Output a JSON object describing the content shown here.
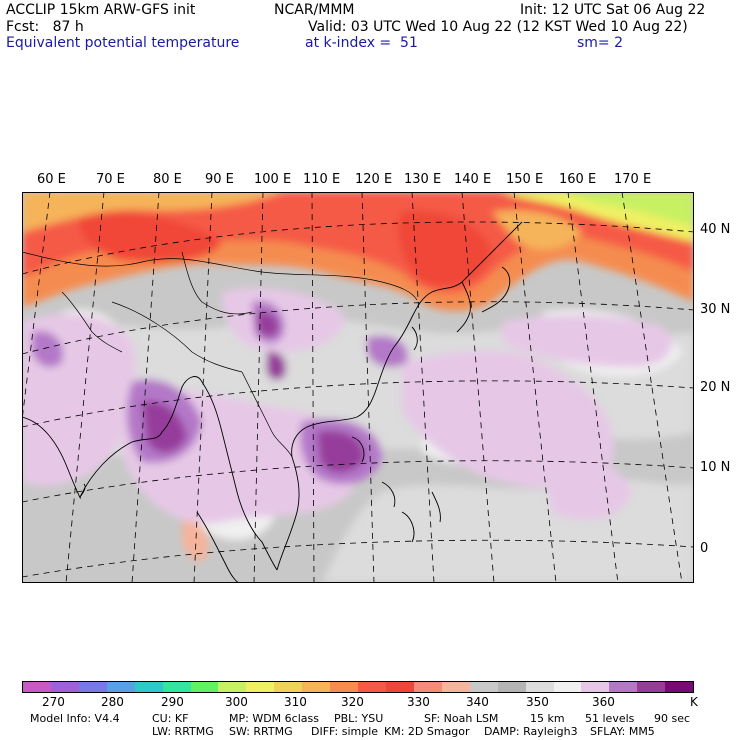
{
  "header": {
    "line1_left": "ACCLIP 15km ARW-GFS init",
    "line1_center": "NCAR/MMM",
    "line1_right": "Init: 12 UTC Sat 06 Aug 22",
    "line2_left": "Fcst:   87 h",
    "line2_right": "Valid: 03 UTC Wed 10 Aug 22 (12 KST Wed 10 Aug 22)",
    "line3_left": "Equivalent potential temperature",
    "line3_center": "at k-index =  51",
    "line3_right": "sm= 2"
  },
  "map": {
    "lon_labels": [
      "60 E",
      "70 E",
      "80 E",
      "90 E",
      "100 E",
      "110 E",
      "120 E",
      "130 E",
      "140 E",
      "150 E",
      "160 E",
      "170 E"
    ],
    "lat_labels": [
      "40 N",
      "30 N",
      "20 N",
      "10 N",
      "0"
    ]
  },
  "colorbar": {
    "colors": [
      "#c85ac8",
      "#a060d8",
      "#7878e6",
      "#5aa0e6",
      "#2ec8c8",
      "#32e6a0",
      "#64f064",
      "#c8f064",
      "#f0f064",
      "#f0d25a",
      "#f5b45a",
      "#f58c50",
      "#f55a46",
      "#f04637",
      "#f58c78",
      "#f5b49b",
      "#c8c8c8",
      "#b4b4b4",
      "#dcdcdc",
      "#f0f0f0",
      "#e6c8e6",
      "#b478c8",
      "#963c9b",
      "#780a78"
    ],
    "labels": [
      "270",
      "280",
      "290",
      "300",
      "310",
      "320",
      "330",
      "340",
      "350",
      "360",
      "K"
    ]
  },
  "footer": {
    "line1": [
      "Model Info: V4.4",
      "CU: KF",
      "MP: WDM 6class",
      "PBL: YSU",
      "SF: Noah LSM",
      "15 km",
      "51 levels",
      "90 sec"
    ],
    "line2": [
      "LW: RRTMG",
      "SW: RRTMG",
      "DIFF: simple",
      "KM: 2D Smagor",
      "DAMP: Rayleigh3",
      "SFLAY: MM5"
    ]
  }
}
